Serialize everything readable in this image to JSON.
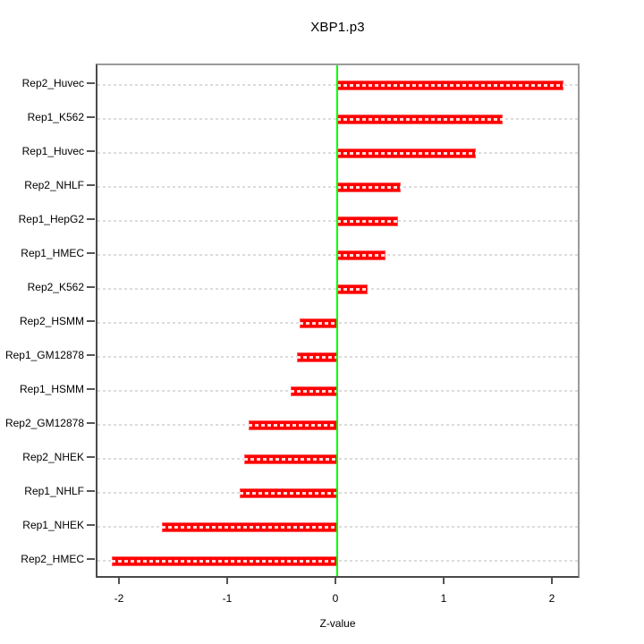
{
  "chart_data": {
    "type": "bar",
    "orientation": "horizontal",
    "title": "XBP1.p3",
    "xlabel": "Z-value",
    "ylabel": "",
    "categories": [
      "Rep2_Huvec",
      "Rep1_K562",
      "Rep1_Huvec",
      "Rep2_NHLF",
      "Rep1_HepG2",
      "Rep1_HMEC",
      "Rep2_K562",
      "Rep2_HSMM",
      "Rep1_GM12878",
      "Rep1_HSMM",
      "Rep2_GM12878",
      "Rep2_NHEK",
      "Rep1_NHLF",
      "Rep1_NHEK",
      "Rep2_HMEC"
    ],
    "values": [
      2.09,
      1.53,
      1.28,
      0.59,
      0.56,
      0.45,
      0.28,
      -0.35,
      -0.37,
      -0.43,
      -0.82,
      -0.86,
      -0.9,
      -1.62,
      -2.08
    ],
    "xticks": [
      "-2",
      "-1",
      "0",
      "1",
      "2"
    ],
    "xtick_values": [
      -2,
      -1,
      0,
      1,
      2
    ],
    "xlim": [
      -2.21,
      2.26
    ],
    "grid": true,
    "gridline_style": "dashed",
    "reference_line_x": 0,
    "legend": "none",
    "colors": {
      "bar": "#ff0000",
      "bar_edge": "#ff5a5a",
      "zero_line": "#00ff00",
      "gridline": "#dcdcdc",
      "gridline_on_bar": "rgba(255,255,255,0.85)",
      "tick": "#555555",
      "text": "#000000",
      "background": "#ffffff"
    }
  }
}
